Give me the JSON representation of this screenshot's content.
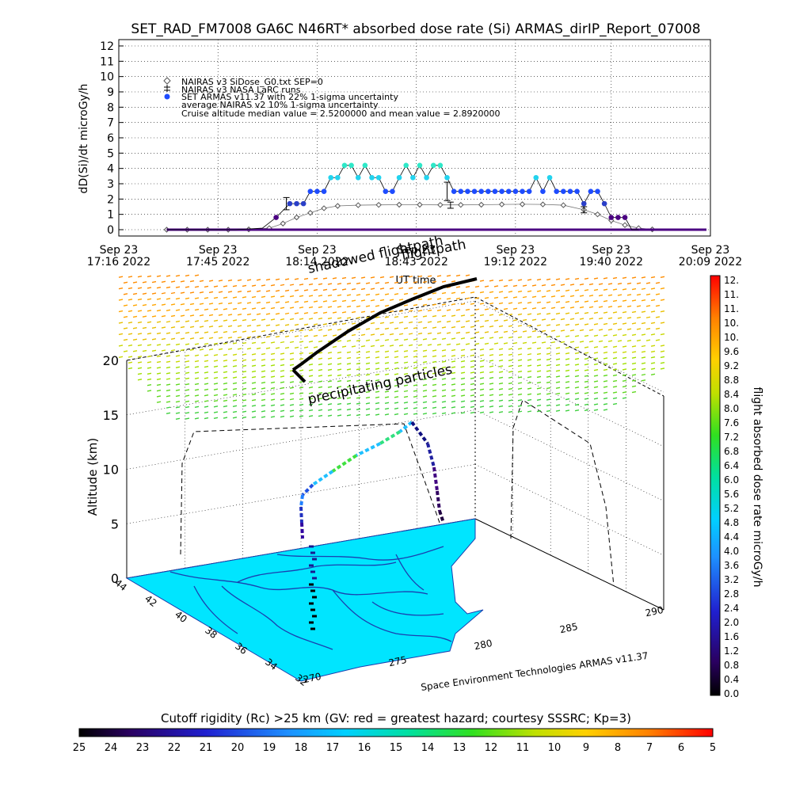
{
  "title": "SET_RAD_FM7008  GA6C N46RT* absorbed dose rate (Si) ARMAS_dirIP_Report_07008",
  "colors": {
    "nairas_diamond": "#555555",
    "cruise_blue": "#1e4cff",
    "cruise_cyan": "#22d3ee",
    "cruise_mint": "#2ee8c8",
    "climb_purple": "#4b0082",
    "map_cyan": "#00e5ff",
    "map_line": "#1a3fb0"
  },
  "chart_data": [
    {
      "type": "scatter",
      "title": "SET_RAD_FM7008  GA6C N46RT* absorbed dose rate (Si) ARMAS_dirIP_Report_07008",
      "ylabel": "dD(Si)/dt microGy/h",
      "xlabel": "UT time",
      "ylim": [
        0,
        12
      ],
      "yticks": [
        "0",
        "1",
        "2",
        "3",
        "4",
        "5",
        "6",
        "7",
        "8",
        "9",
        "10",
        "11",
        "12"
      ],
      "xlim": [
        "17:16",
        "20:09"
      ],
      "xticks": [
        {
          "line1": "Sep 23",
          "line2": "17:16 2022",
          "time": "17:16"
        },
        {
          "line1": "Sep 23",
          "line2": "17:45 2022",
          "time": "17:45"
        },
        {
          "line1": "Sep 23",
          "line2": "18:14 2022",
          "time": "18:14"
        },
        {
          "line1": "Sep 23",
          "line2": "18:43 2022",
          "time": "18:43"
        },
        {
          "line1": "Sep 23",
          "line2": "19:12 2022",
          "time": "19:12"
        },
        {
          "line1": "Sep 23",
          "line2": "19:40 2022",
          "time": "19:40"
        },
        {
          "line1": "Sep 23",
          "line2": "20:09 2022",
          "time": "20:09"
        }
      ],
      "legend": {
        "position": "top-left",
        "entries": [
          "NAIRAS v3 SiDose_G0.txt SEP=0",
          "NAIRAS v3 NASA LaRC runs",
          "SET ARMAS v11.37 with 22% 1-sigma uncertainty",
          "average NAIRAS v2 10% 1-sigma uncertainty",
          "Cruise altitude median value = 2.5200000 and mean value = 2.8920000"
        ]
      },
      "series": [
        {
          "name": "NAIRAS v3 SiDose_G0.txt SEP=0",
          "x": [
            "17:30",
            "17:36",
            "17:42",
            "17:48",
            "17:54",
            "18:00",
            "18:04",
            "18:08",
            "18:12",
            "18:16",
            "18:20",
            "18:26",
            "18:32",
            "18:38",
            "18:44",
            "18:50",
            "18:56",
            "19:02",
            "19:08",
            "19:14",
            "19:20",
            "19:26",
            "19:32",
            "19:36",
            "19:40",
            "19:44",
            "19:48",
            "19:52"
          ],
          "y": [
            0.0,
            0.0,
            0.0,
            0.0,
            0.02,
            0.1,
            0.4,
            0.8,
            1.1,
            1.4,
            1.55,
            1.6,
            1.62,
            1.63,
            1.63,
            1.62,
            1.62,
            1.63,
            1.65,
            1.66,
            1.65,
            1.6,
            1.3,
            1.0,
            0.6,
            0.3,
            0.1,
            0.02
          ]
        },
        {
          "name": "SET ARMAS v11.37 with 22% 1-sigma uncertainty",
          "x": [
            "17:30",
            "17:40",
            "17:50",
            "17:58",
            "18:02",
            "18:06",
            "18:08",
            "18:10",
            "18:12",
            "18:14",
            "18:16",
            "18:18",
            "18:20",
            "18:22",
            "18:24",
            "18:26",
            "18:28",
            "18:30",
            "18:32",
            "18:34",
            "18:36",
            "18:38",
            "18:40",
            "18:42",
            "18:44",
            "18:46",
            "18:48",
            "18:50",
            "18:52",
            "18:54",
            "18:56",
            "18:58",
            "19:00",
            "19:02",
            "19:04",
            "19:06",
            "19:08",
            "19:10",
            "19:12",
            "19:14",
            "19:16",
            "19:18",
            "19:20",
            "19:22",
            "19:24",
            "19:26",
            "19:28",
            "19:30",
            "19:32",
            "19:34",
            "19:36",
            "19:38",
            "19:40",
            "19:42",
            "19:44",
            "19:46",
            "19:48"
          ],
          "y": [
            0.0,
            0.0,
            0.0,
            0.1,
            0.8,
            1.7,
            1.7,
            1.7,
            2.5,
            2.5,
            2.5,
            3.4,
            3.4,
            4.2,
            4.2,
            3.4,
            4.2,
            3.4,
            3.4,
            2.5,
            2.5,
            3.4,
            4.2,
            3.4,
            4.2,
            3.4,
            4.2,
            4.2,
            3.4,
            2.5,
            2.5,
            2.5,
            2.5,
            2.5,
            2.5,
            2.5,
            2.5,
            2.5,
            2.5,
            2.5,
            2.5,
            3.4,
            2.5,
            3.4,
            2.5,
            2.5,
            2.5,
            2.5,
            1.7,
            2.5,
            2.5,
            1.7,
            0.8,
            0.8,
            0.8,
            0.0,
            0.0
          ]
        }
      ],
      "errorbars": [
        {
          "x": "18:05",
          "y": 1.7,
          "err": 0.4
        },
        {
          "x": "18:52",
          "y": 2.5,
          "err": 0.6
        },
        {
          "x": "18:53",
          "y": 1.6,
          "err": 0.2
        },
        {
          "x": "19:32",
          "y": 1.3,
          "err": 0.2
        }
      ],
      "grid": true
    },
    {
      "type": "scatter",
      "xlabel": "longitude",
      "ylabel": "Altitude (km)",
      "zlim": [
        0,
        20
      ],
      "zticks": [
        "0",
        "5",
        "10",
        "15",
        "20"
      ],
      "lat_ticks": [
        "44",
        "42",
        "40",
        "38",
        "36",
        "34",
        "32"
      ],
      "lon_ticks": [
        "270",
        "275",
        "280",
        "285",
        "290"
      ],
      "annotations": [
        "precipitating particles",
        "flightpath",
        "shadowed flightpath"
      ],
      "credit": "Space Environment Technologies ARMAS v11.37"
    },
    {
      "type": "heatmap",
      "name": "right colorbar",
      "label": "flight absorbed dose rate microGy/h",
      "ticks": [
        "0.0",
        "0.4",
        "0.8",
        "1.2",
        "1.6",
        "2.0",
        "2.4",
        "2.8",
        "3.2",
        "3.6",
        "4.0",
        "4.4",
        "4.8",
        "5.2",
        "5.6",
        "6.0",
        "6.4",
        "6.8",
        "7.2",
        "7.6",
        "8.0",
        "8.4",
        "8.8",
        "9.2",
        "9.6",
        "10.",
        "10.",
        "11.",
        "11.",
        "12."
      ],
      "range": [
        0,
        12
      ]
    },
    {
      "type": "heatmap",
      "name": "bottom colorbar",
      "label": "Cutoff rigidity (Rc) >25 km (GV: red = greatest hazard; courtesy SSSRC; Kp=3)",
      "ticks": [
        "25",
        "24",
        "23",
        "22",
        "21",
        "20",
        "19",
        "18",
        "17",
        "16",
        "15",
        "14",
        "13",
        "12",
        "11",
        "10",
        "9",
        "8",
        "7",
        "6",
        "5"
      ],
      "range": [
        25,
        5
      ]
    }
  ]
}
